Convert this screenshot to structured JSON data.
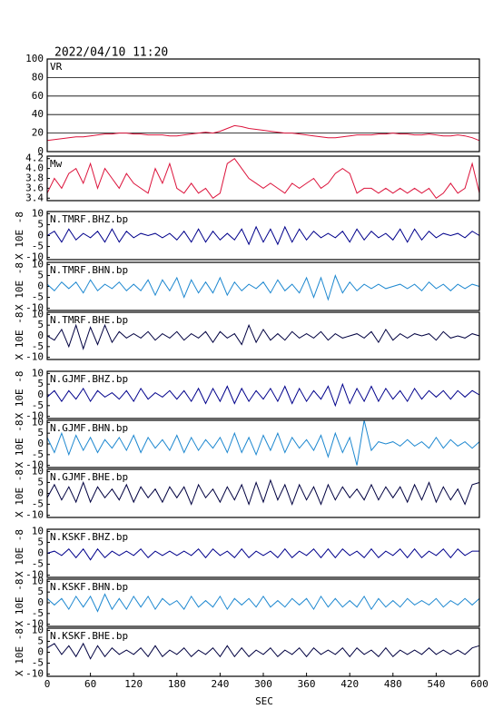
{
  "chart_data": {
    "type": "line",
    "title": "2022/04/10 11:20",
    "xlabel": "SEC",
    "x": [
      0,
      10,
      20,
      30,
      40,
      50,
      60,
      70,
      80,
      90,
      100,
      110,
      120,
      130,
      140,
      150,
      160,
      170,
      180,
      190,
      200,
      210,
      220,
      230,
      240,
      250,
      260,
      270,
      280,
      290,
      300,
      310,
      320,
      330,
      340,
      350,
      360,
      370,
      380,
      390,
      400,
      410,
      420,
      430,
      440,
      450,
      460,
      470,
      480,
      490,
      500,
      510,
      520,
      530,
      540,
      550,
      560,
      570,
      580,
      590,
      600
    ],
    "xlim": [
      0,
      600
    ],
    "xticks": [
      0,
      60,
      120,
      180,
      240,
      300,
      360,
      420,
      480,
      540,
      600
    ],
    "panels": [
      {
        "ylim": [
          0,
          100
        ],
        "yticks": [
          0,
          20,
          40,
          60,
          80,
          100
        ],
        "grid": true,
        "series": [
          {
            "name": "VR",
            "color": "#dc143c",
            "values": [
              12,
              13,
              14,
              15,
              16,
              16,
              17,
              18,
              19,
              19,
              20,
              20,
              19,
              19,
              18,
              18,
              18,
              17,
              17,
              18,
              19,
              20,
              21,
              20,
              22,
              25,
              28,
              27,
              25,
              24,
              23,
              22,
              21,
              20,
              20,
              19,
              18,
              17,
              16,
              15,
              15,
              16,
              17,
              18,
              18,
              18,
              19,
              19,
              20,
              19,
              19,
              18,
              18,
              19,
              18,
              17,
              17,
              18,
              17,
              15,
              12
            ]
          }
        ]
      },
      {
        "ylim": [
          3.35,
          4.25
        ],
        "yticks": [
          3.4,
          3.6,
          3.8,
          {
            "value": 4,
            "label": "4.0"
          },
          4.2
        ],
        "grid": false,
        "series": [
          {
            "name": "Mw",
            "color": "#dc143c",
            "values": [
              3.5,
              3.8,
              3.6,
              3.9,
              4.0,
              3.7,
              4.1,
              3.6,
              4.0,
              3.8,
              3.6,
              3.9,
              3.7,
              3.6,
              3.5,
              4.0,
              3.7,
              4.1,
              3.6,
              3.5,
              3.7,
              3.5,
              3.6,
              3.4,
              3.5,
              4.1,
              4.2,
              4.0,
              3.8,
              3.7,
              3.6,
              3.7,
              3.6,
              3.5,
              3.7,
              3.6,
              3.7,
              3.8,
              3.6,
              3.7,
              3.9,
              4.0,
              3.9,
              3.5,
              3.6,
              3.6,
              3.5,
              3.6,
              3.5,
              3.6,
              3.5,
              3.6,
              3.5,
              3.6,
              3.4,
              3.5,
              3.7,
              3.5,
              3.6,
              4.1,
              3.5
            ]
          }
        ]
      },
      {
        "ylabel": "X 10E -8",
        "ylim": [
          -11,
          11
        ],
        "yticks": [
          -10,
          -5,
          0,
          5,
          10
        ],
        "grid": false,
        "series": [
          {
            "name": "N.TMRF.BHZ.bp",
            "color": "#00008b",
            "values": [
              0,
              2,
              -3,
              3,
              -2,
              1,
              -1,
              2,
              -3,
              3,
              -3,
              2,
              -1,
              1,
              0,
              1,
              -1,
              1,
              -2,
              2,
              -3,
              3,
              -3,
              2,
              -2,
              1,
              -2,
              3,
              -4,
              4,
              -3,
              3,
              -4,
              4,
              -3,
              3,
              -2,
              2,
              -1,
              1,
              -1,
              2,
              -3,
              3,
              -2,
              2,
              -1,
              1,
              -2,
              3,
              -3,
              3,
              -2,
              2,
              -1,
              1,
              0,
              1,
              -1,
              2,
              0
            ]
          }
        ]
      },
      {
        "ylabel": "X 10E -8",
        "ylim": [
          -11,
          11
        ],
        "yticks": [
          -10,
          -5,
          0,
          5,
          10
        ],
        "grid": false,
        "series": [
          {
            "name": "N.TMRF.BHN.bp",
            "color": "#1e88d0",
            "values": [
              1,
              -2,
              2,
              -1,
              2,
              -3,
              3,
              -2,
              1,
              -1,
              2,
              -2,
              1,
              -2,
              3,
              -4,
              3,
              -2,
              4,
              -5,
              3,
              -3,
              2,
              -3,
              4,
              -4,
              2,
              -2,
              1,
              -1,
              2,
              -3,
              3,
              -2,
              1,
              -3,
              4,
              -5,
              4,
              -6,
              5,
              -3,
              2,
              -2,
              1,
              -1,
              1,
              -1,
              0,
              1,
              -1,
              1,
              -2,
              2,
              -1,
              1,
              -2,
              1,
              -1,
              1,
              0
            ]
          }
        ]
      },
      {
        "ylabel": "X 10E -8",
        "ylim": [
          -11,
          11
        ],
        "yticks": [
          -10,
          -5,
          0,
          5,
          10
        ],
        "grid": false,
        "series": [
          {
            "name": "N.TMRF.BHE.bp",
            "color": "#000040",
            "values": [
              0,
              -2,
              3,
              -5,
              5,
              -6,
              4,
              -4,
              5,
              -3,
              2,
              -1,
              1,
              -1,
              2,
              -2,
              1,
              -1,
              2,
              -2,
              1,
              -1,
              2,
              -3,
              2,
              -1,
              1,
              -4,
              5,
              -3,
              3,
              -2,
              1,
              -2,
              2,
              -1,
              1,
              -1,
              2,
              -2,
              1,
              -1,
              0,
              1,
              -1,
              2,
              -3,
              3,
              -2,
              1,
              -1,
              1,
              0,
              1,
              -2,
              2,
              -1,
              0,
              -1,
              1,
              0
            ]
          }
        ]
      },
      {
        "ylabel": "X 10E -8",
        "ylim": [
          -11,
          11
        ],
        "yticks": [
          -10,
          -5,
          0,
          5,
          10
        ],
        "grid": false,
        "series": [
          {
            "name": "N.GJMF.BHZ.bp",
            "color": "#00008b",
            "values": [
              -1,
              2,
              -3,
              2,
              -2,
              3,
              -3,
              2,
              -1,
              1,
              -2,
              2,
              -3,
              3,
              -2,
              1,
              -1,
              2,
              -2,
              2,
              -3,
              3,
              -4,
              3,
              -3,
              4,
              -4,
              3,
              -3,
              2,
              -2,
              3,
              -3,
              4,
              -4,
              3,
              -3,
              2,
              -2,
              4,
              -5,
              5,
              -4,
              3,
              -3,
              4,
              -3,
              3,
              -2,
              2,
              -3,
              3,
              -2,
              2,
              -1,
              2,
              -2,
              2,
              -1,
              2,
              0
            ]
          }
        ]
      },
      {
        "ylabel": "X 10E -8",
        "ylim": [
          -11,
          11
        ],
        "yticks": [
          -10,
          -5,
          0,
          5,
          10
        ],
        "grid": false,
        "series": [
          {
            "name": "N.GJMF.BHN.bp",
            "color": "#1e88d0",
            "values": [
              3,
              -4,
              5,
              -5,
              4,
              -3,
              3,
              -4,
              2,
              -2,
              3,
              -3,
              4,
              -4,
              3,
              -2,
              2,
              -3,
              4,
              -4,
              3,
              -3,
              2,
              -2,
              3,
              -4,
              5,
              -4,
              3,
              -5,
              4,
              -3,
              5,
              -4,
              3,
              -2,
              2,
              -3,
              4,
              -6,
              5,
              -4,
              3,
              -10,
              11,
              -3,
              1,
              0,
              1,
              -1,
              2,
              -1,
              1,
              -2,
              3,
              -2,
              2,
              -1,
              1,
              -2,
              1
            ]
          }
        ]
      },
      {
        "ylabel": "X 10E -8",
        "ylim": [
          -11,
          11
        ],
        "yticks": [
          -10,
          -5,
          0,
          5,
          10
        ],
        "grid": false,
        "series": [
          {
            "name": "N.GJMF.BHE.bp",
            "color": "#000040",
            "values": [
              -2,
              4,
              -3,
              3,
              -4,
              5,
              -4,
              3,
              -2,
              2,
              -3,
              4,
              -4,
              3,
              -2,
              2,
              -4,
              3,
              -2,
              3,
              -5,
              4,
              -2,
              2,
              -4,
              3,
              -3,
              4,
              -5,
              5,
              -4,
              6,
              -3,
              4,
              -5,
              4,
              -3,
              3,
              -5,
              4,
              -3,
              3,
              -2,
              2,
              -3,
              4,
              -3,
              3,
              -2,
              3,
              -4,
              4,
              -3,
              5,
              -4,
              3,
              -3,
              2,
              -5,
              4,
              5
            ]
          }
        ]
      },
      {
        "ylabel": "X 10E -8",
        "ylim": [
          -11,
          11
        ],
        "yticks": [
          -10,
          -5,
          0,
          5,
          10
        ],
        "grid": false,
        "series": [
          {
            "name": "N.KSKF.BHZ.bp",
            "color": "#00008b",
            "values": [
              0,
              1,
              -1,
              2,
              -2,
              2,
              -3,
              2,
              -2,
              1,
              -1,
              1,
              -1,
              2,
              -2,
              1,
              -1,
              1,
              -1,
              1,
              -1,
              2,
              -2,
              2,
              -1,
              1,
              -2,
              2,
              -2,
              1,
              -1,
              1,
              -2,
              2,
              -2,
              1,
              -1,
              2,
              -2,
              2,
              -2,
              2,
              -1,
              1,
              -2,
              2,
              -2,
              1,
              -1,
              2,
              -2,
              2,
              -2,
              1,
              -1,
              2,
              -2,
              2,
              -1,
              1,
              1
            ]
          }
        ]
      },
      {
        "ylabel": "X 10E -8",
        "ylim": [
          -11,
          11
        ],
        "yticks": [
          -10,
          -5,
          0,
          5,
          10
        ],
        "grid": false,
        "series": [
          {
            "name": "N.KSKF.BHN.bp",
            "color": "#1e88d0",
            "values": [
              2,
              -1,
              2,
              -3,
              3,
              -2,
              3,
              -4,
              4,
              -3,
              2,
              -3,
              3,
              -2,
              3,
              -3,
              2,
              -1,
              1,
              -3,
              3,
              -2,
              1,
              -2,
              3,
              -3,
              2,
              -1,
              2,
              -2,
              3,
              -2,
              1,
              -2,
              2,
              -1,
              2,
              -3,
              3,
              -2,
              2,
              -2,
              1,
              -2,
              3,
              -3,
              2,
              -2,
              1,
              -2,
              2,
              -1,
              1,
              -1,
              2,
              -2,
              1,
              -1,
              2,
              -1,
              2
            ]
          }
        ]
      },
      {
        "ylabel": "X 10E -8",
        "ylim": [
          -11,
          11
        ],
        "yticks": [
          -10,
          -5,
          0,
          5,
          10
        ],
        "grid": false,
        "series": [
          {
            "name": "N.KSKF.BHE.bp",
            "color": "#000040",
            "values": [
              2,
              4,
              -1,
              3,
              -2,
              4,
              -3,
              3,
              -2,
              2,
              -1,
              1,
              -1,
              2,
              -2,
              3,
              -2,
              1,
              -1,
              2,
              -2,
              1,
              -1,
              2,
              -2,
              3,
              -2,
              2,
              -2,
              1,
              -1,
              2,
              -2,
              1,
              -1,
              2,
              -2,
              2,
              -1,
              1,
              -1,
              2,
              -2,
              2,
              -1,
              1,
              -2,
              2,
              -2,
              1,
              -1,
              1,
              -1,
              2,
              -1,
              1,
              -1,
              1,
              -1,
              2,
              3
            ]
          }
        ]
      }
    ]
  }
}
